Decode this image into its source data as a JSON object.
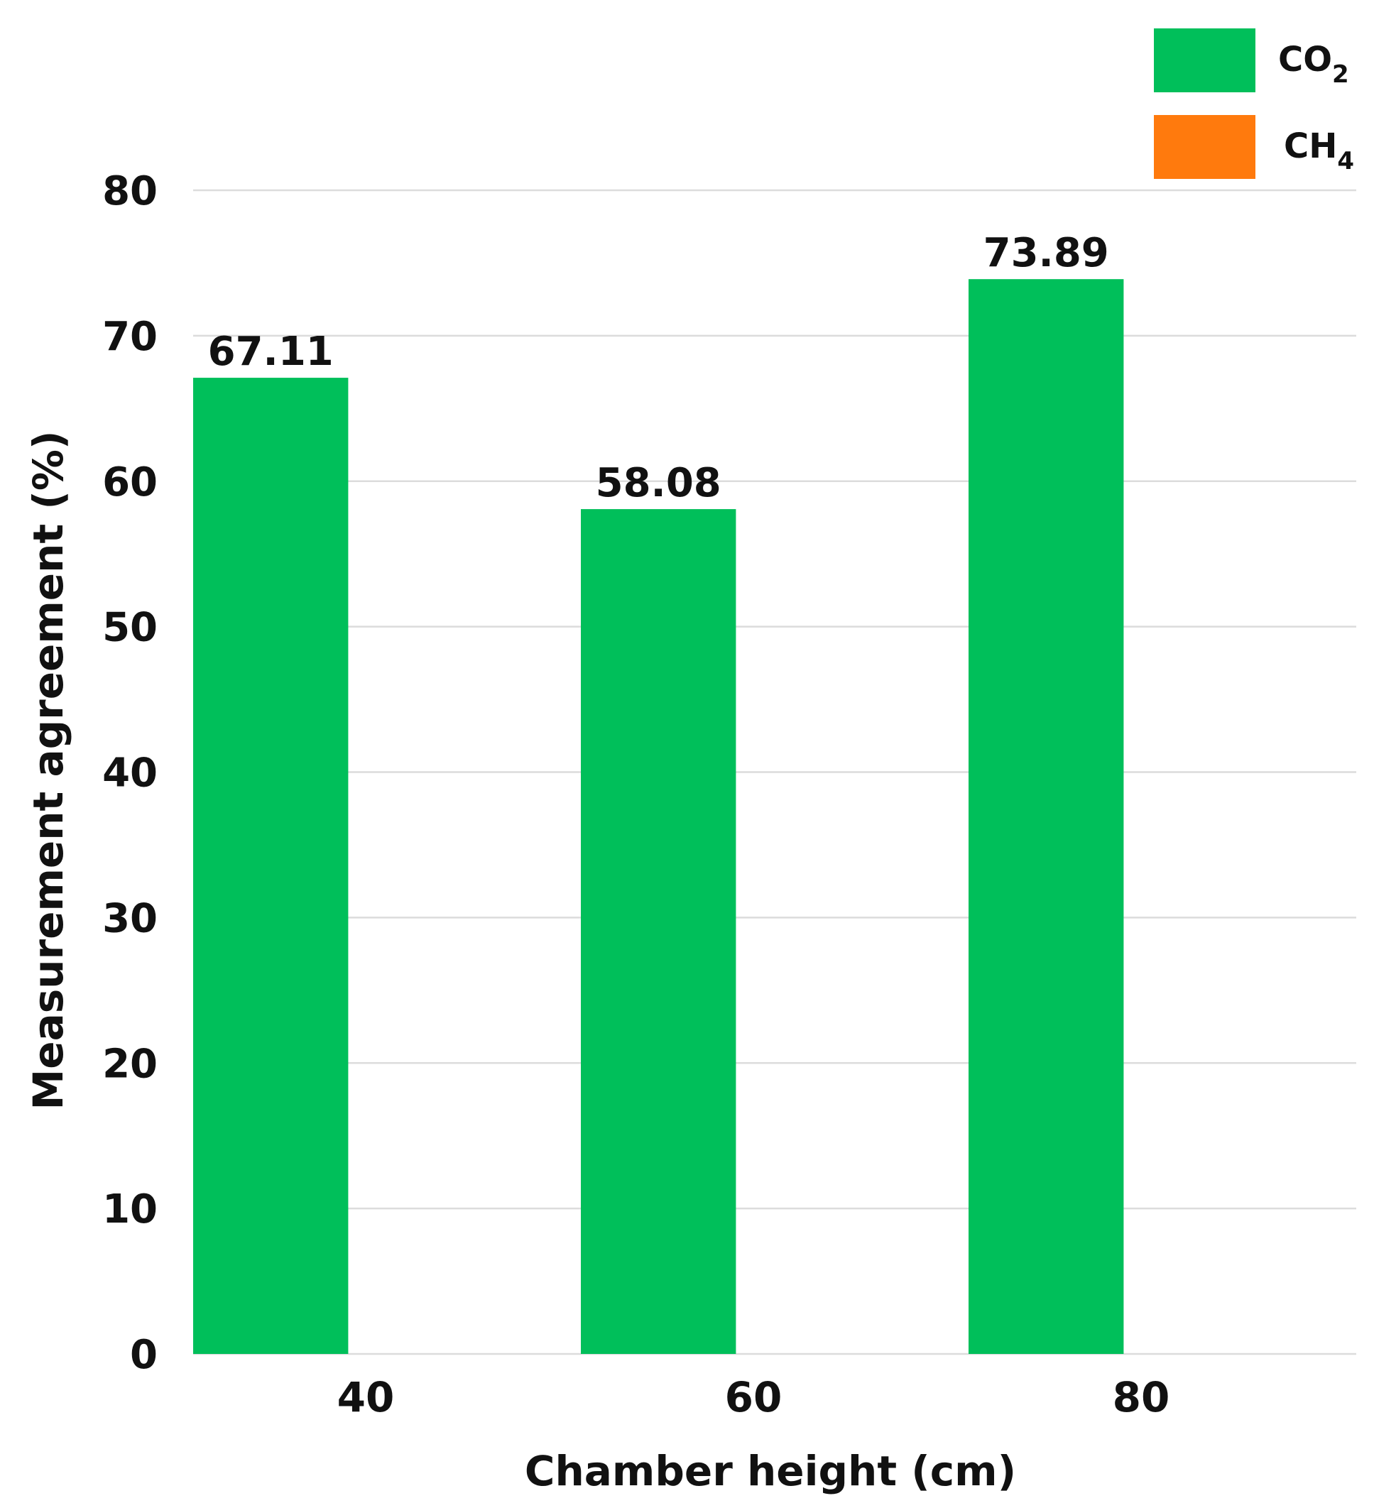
{
  "chart_data": {
    "type": "bar",
    "categories": [
      "40",
      "60",
      "80"
    ],
    "series": [
      {
        "name": "CO2",
        "name_main": "CO",
        "name_sub": "2",
        "color": "#00bf5a",
        "values": [
          67.11,
          58.08,
          73.89
        ]
      },
      {
        "name": "CH4",
        "name_main": "CH",
        "name_sub": "4",
        "color": "#ff7a0d",
        "values": [
          null,
          null,
          null
        ]
      }
    ],
    "data_labels": [
      "67.11",
      "58.08",
      "73.89"
    ],
    "xlabel": "Chamber height (cm)",
    "ylabel": "Measurement agreement (%)",
    "ylim": [
      0,
      80
    ],
    "yticks": [
      "0",
      "10",
      "20",
      "30",
      "40",
      "50",
      "60",
      "70",
      "80"
    ],
    "grid": true,
    "legend_position": "top-right"
  }
}
